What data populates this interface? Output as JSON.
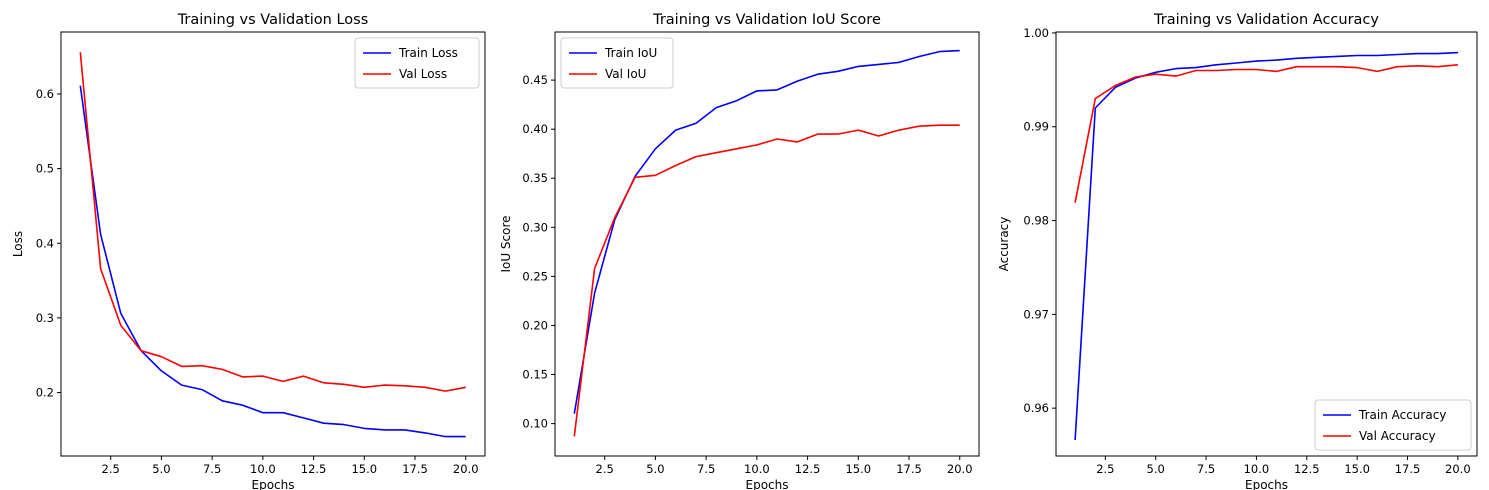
{
  "chart_data": [
    {
      "type": "line",
      "title": "Training vs Validation Loss",
      "xlabel": "Epochs",
      "ylabel": "Loss",
      "xlim": [
        0.05,
        20.95
      ],
      "ylim": [
        0.115,
        0.683
      ],
      "xticks": [
        2.5,
        5.0,
        7.5,
        10.0,
        12.5,
        15.0,
        17.5,
        20.0
      ],
      "xtick_labels": [
        "2.5",
        "5.0",
        "7.5",
        "10.0",
        "12.5",
        "15.0",
        "17.5",
        "20.0"
      ],
      "yticks": [
        0.2,
        0.3,
        0.4,
        0.5,
        0.6
      ],
      "ytick_labels": [
        "0.2",
        "0.3",
        "0.4",
        "0.5",
        "0.6"
      ],
      "legend_position": "top-right",
      "grid": false,
      "x": [
        1,
        2,
        3,
        4,
        5,
        6,
        7,
        8,
        9,
        10,
        11,
        12,
        13,
        14,
        15,
        16,
        17,
        18,
        19,
        20
      ],
      "series": [
        {
          "name": "Train Loss",
          "color": "#0000ff",
          "values": [
            0.611,
            0.412,
            0.306,
            0.256,
            0.229,
            0.21,
            0.204,
            0.189,
            0.183,
            0.173,
            0.173,
            0.166,
            0.159,
            0.157,
            0.152,
            0.15,
            0.15,
            0.146,
            0.141,
            0.141
          ]
        },
        {
          "name": "Val Loss",
          "color": "#ff0000",
          "values": [
            0.656,
            0.366,
            0.29,
            0.256,
            0.248,
            0.235,
            0.236,
            0.231,
            0.221,
            0.222,
            0.215,
            0.222,
            0.213,
            0.211,
            0.207,
            0.21,
            0.209,
            0.207,
            0.202,
            0.207
          ]
        }
      ]
    },
    {
      "type": "line",
      "title": "Training vs Validation IoU Score",
      "xlabel": "Epochs",
      "ylabel": "IoU Score",
      "xlim": [
        0.05,
        20.95
      ],
      "ylim": [
        0.067,
        0.499
      ],
      "xticks": [
        2.5,
        5.0,
        7.5,
        10.0,
        12.5,
        15.0,
        17.5,
        20.0
      ],
      "xtick_labels": [
        "2.5",
        "5.0",
        "7.5",
        "10.0",
        "12.5",
        "15.0",
        "17.5",
        "20.0"
      ],
      "yticks": [
        0.1,
        0.15,
        0.2,
        0.25,
        0.3,
        0.35,
        0.4,
        0.45
      ],
      "ytick_labels": [
        "0.10",
        "0.15",
        "0.20",
        "0.25",
        "0.30",
        "0.35",
        "0.40",
        "0.45"
      ],
      "legend_position": "top-left",
      "grid": false,
      "x": [
        1,
        2,
        3,
        4,
        5,
        6,
        7,
        8,
        9,
        10,
        11,
        12,
        13,
        14,
        15,
        16,
        17,
        18,
        19,
        20
      ],
      "series": [
        {
          "name": "Train IoU",
          "color": "#0000ff",
          "values": [
            0.11,
            0.233,
            0.308,
            0.352,
            0.38,
            0.399,
            0.406,
            0.422,
            0.429,
            0.439,
            0.44,
            0.449,
            0.456,
            0.459,
            0.464,
            0.466,
            0.468,
            0.474,
            0.479,
            0.48
          ]
        },
        {
          "name": "Val IoU",
          "color": "#ff0000",
          "values": [
            0.087,
            0.258,
            0.31,
            0.351,
            0.353,
            0.363,
            0.372,
            0.376,
            0.38,
            0.384,
            0.39,
            0.387,
            0.395,
            0.395,
            0.399,
            0.393,
            0.399,
            0.403,
            0.404,
            0.404
          ]
        }
      ]
    },
    {
      "type": "line",
      "title": "Training vs Validation Accuracy",
      "xlabel": "Epochs",
      "ylabel": "Accuracy",
      "xlim": [
        0.05,
        20.95
      ],
      "ylim": [
        0.9549,
        1.0001
      ],
      "xticks": [
        2.5,
        5.0,
        7.5,
        10.0,
        12.5,
        15.0,
        17.5,
        20.0
      ],
      "xtick_labels": [
        "2.5",
        "5.0",
        "7.5",
        "10.0",
        "12.5",
        "15.0",
        "17.5",
        "20.0"
      ],
      "yticks": [
        0.96,
        0.97,
        0.98,
        0.99,
        1.0
      ],
      "ytick_labels": [
        "0.96",
        "0.97",
        "0.98",
        "0.99",
        "1.00"
      ],
      "legend_position": "bottom-right",
      "grid": false,
      "x": [
        1,
        2,
        3,
        4,
        5,
        6,
        7,
        8,
        9,
        10,
        11,
        12,
        13,
        14,
        15,
        16,
        17,
        18,
        19,
        20
      ],
      "series": [
        {
          "name": "Train Accuracy",
          "color": "#0000ff",
          "values": [
            0.9566,
            0.992,
            0.9942,
            0.9952,
            0.9958,
            0.9962,
            0.9963,
            0.9966,
            0.9968,
            0.997,
            0.9971,
            0.9973,
            0.9974,
            0.9975,
            0.9976,
            0.9976,
            0.9977,
            0.9978,
            0.9978,
            0.9979
          ]
        },
        {
          "name": "Val Accuracy",
          "color": "#ff0000",
          "values": [
            0.9819,
            0.993,
            0.9944,
            0.9953,
            0.9956,
            0.9954,
            0.996,
            0.996,
            0.9961,
            0.9961,
            0.9959,
            0.9964,
            0.9964,
            0.9964,
            0.9963,
            0.9959,
            0.9964,
            0.9965,
            0.9964,
            0.9966
          ]
        }
      ]
    }
  ]
}
